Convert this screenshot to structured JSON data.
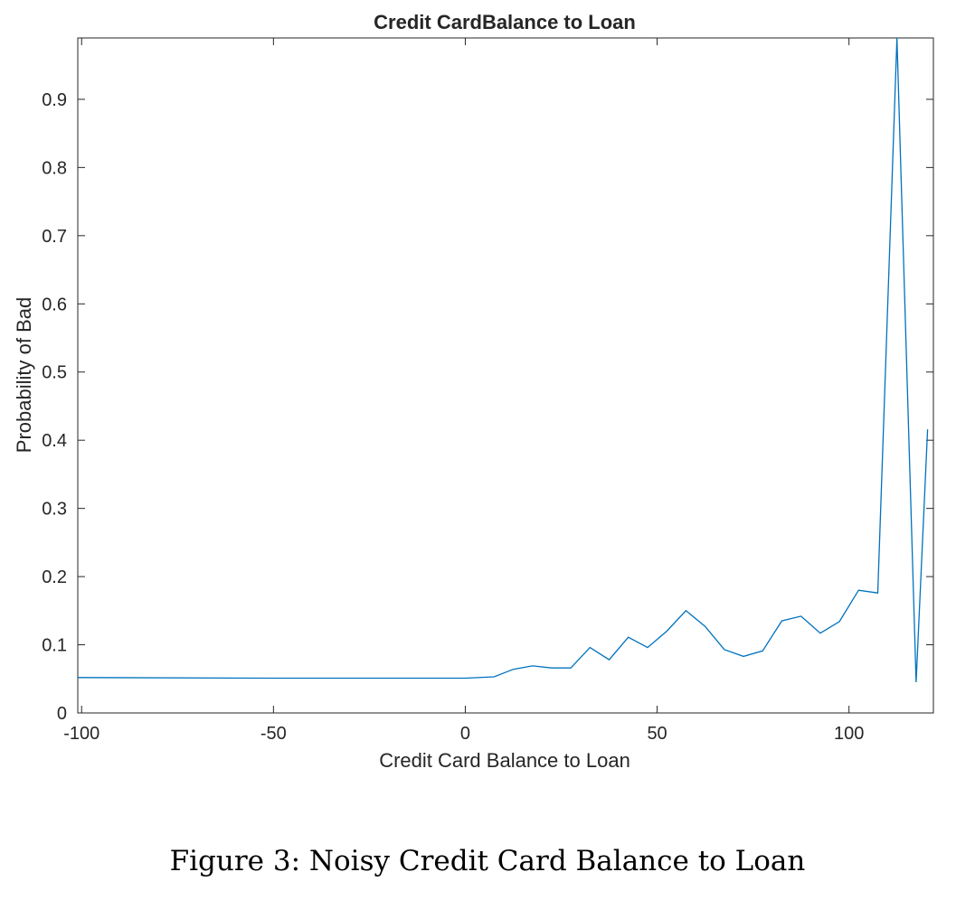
{
  "caption": "Figure 3: Noisy Credit Card Balance to Loan",
  "chart_data": {
    "type": "line",
    "title": "Credit CardBalance to Loan",
    "xlabel": "Credit Card Balance to Loan",
    "ylabel": "Probability of Bad",
    "xlim": [
      -101,
      122
    ],
    "ylim": [
      0,
      0.99
    ],
    "xticks": [
      -100,
      -50,
      0,
      50,
      100
    ],
    "xtick_labels": [
      "-100",
      "-50",
      "0",
      "50",
      "100"
    ],
    "yticks": [
      0,
      0.1,
      0.2,
      0.3,
      0.4,
      0.5,
      0.6,
      0.7,
      0.8,
      0.9
    ],
    "ytick_labels": [
      "0",
      "0.1",
      "0.2",
      "0.3",
      "0.4",
      "0.5",
      "0.6",
      "0.7",
      "0.8",
      "0.9"
    ],
    "grid": false,
    "box": true,
    "line_color": "#0072BD",
    "series": [
      {
        "x": [
          -101,
          -50,
          0,
          7.5,
          12.5,
          17.5,
          22.5,
          27.5,
          32.5,
          37.5,
          42.5,
          47.5,
          52.5,
          57.5,
          62.5,
          67.5,
          72.5,
          77.5,
          82.5,
          87.5,
          92.5,
          97.5,
          102.5,
          107.5,
          112.5,
          117.5,
          120.5
        ],
        "y": [
          0.052,
          0.051,
          0.051,
          0.053,
          0.064,
          0.069,
          0.066,
          0.066,
          0.096,
          0.078,
          0.111,
          0.096,
          0.12,
          0.15,
          0.127,
          0.093,
          0.083,
          0.091,
          0.135,
          0.142,
          0.117,
          0.134,
          0.18,
          0.176,
          0.99,
          0.045,
          0.416
        ]
      }
    ]
  }
}
